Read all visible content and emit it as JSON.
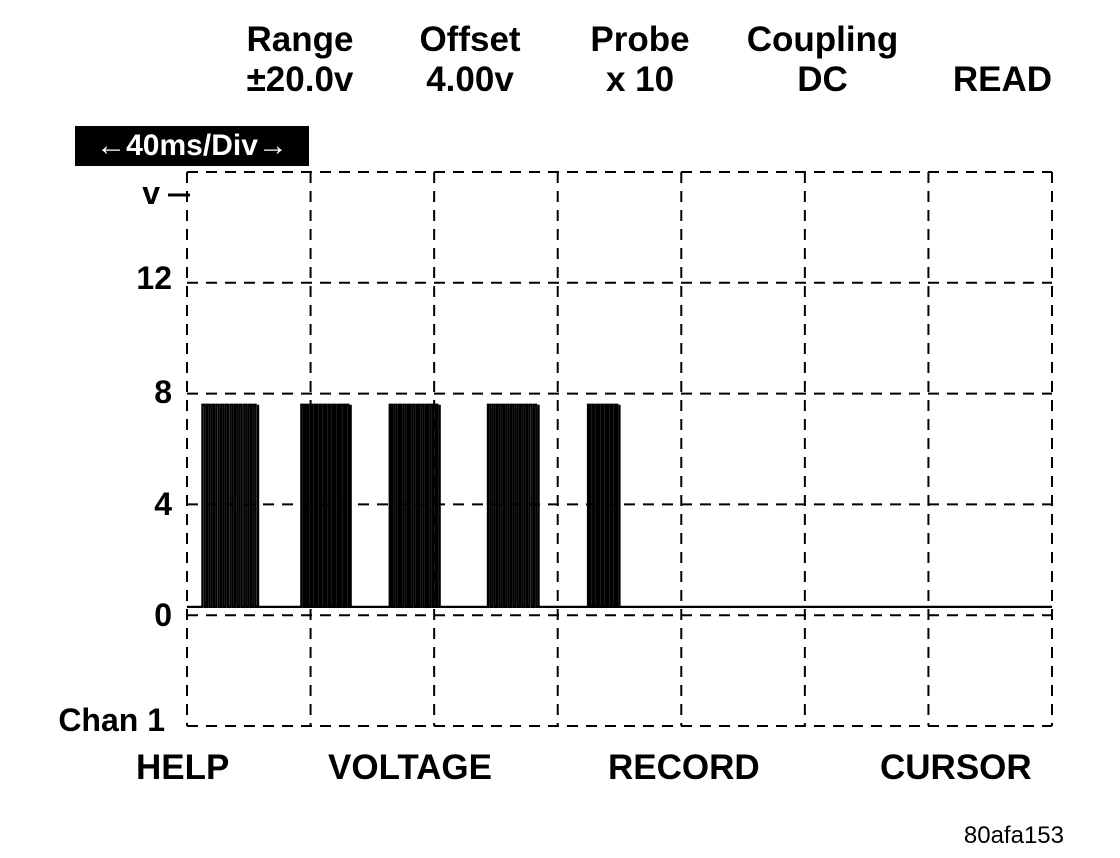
{
  "header": {
    "range": {
      "label": "Range",
      "value": "±20.0v"
    },
    "offset": {
      "label": "Offset",
      "value": "4.00v"
    },
    "probe": {
      "label": "Probe",
      "value": "x 10"
    },
    "coupling": {
      "label": "Coupling",
      "value": "DC"
    },
    "mode": "READ"
  },
  "timebase": "←40ms/Div→",
  "channel_label": "Chan 1",
  "softkeys": [
    "HELP",
    "VOLTAGE",
    "RECORD",
    "CURSOR"
  ],
  "figure_id": "80afa153",
  "colors": {
    "trace": "#000000",
    "grid": "#000000",
    "background": "#ffffff"
  },
  "chart_data": {
    "type": "line",
    "title": "",
    "xlabel": "",
    "ylabel": "v",
    "y_ticks": [
      "12",
      "8",
      "4",
      "0"
    ],
    "y_tick_values": [
      12,
      8,
      4,
      0
    ],
    "ylim": [
      -4,
      16
    ],
    "time_per_div_ms": 40,
    "xlim_ms": [
      0,
      280
    ],
    "grid": true,
    "series": [
      {
        "bursts": [
          {
            "start_ms": 5,
            "end_ms": 23
          },
          {
            "start_ms": 37,
            "end_ms": 53
          },
          {
            "start_ms": 65.6,
            "end_ms": 81.8
          },
          {
            "start_ms": 97.4,
            "end_ms": 113.8
          },
          {
            "start_ms": 129.8,
            "end_ms": 140
          }
        ],
        "high_v": 7.6,
        "low_v": 0.3,
        "burst_pulse_period_ms": 1.5
      }
    ]
  }
}
